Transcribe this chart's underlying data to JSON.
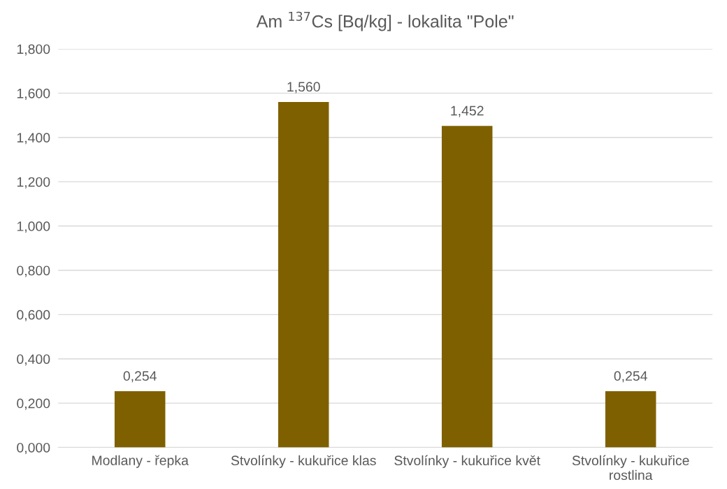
{
  "chart_data": {
    "type": "bar",
    "title": "Am $^{137}$Cs [Bq/kg] - lokalita \"Pole\"",
    "categories": [
      "Modlany - řepka",
      "Stvolínky - kukuřice klas",
      "Stvolínky - kukuřice květ",
      "Stvolínky - kukuřice\nrostlina"
    ],
    "values": [
      0.254,
      1.56,
      1.452,
      0.254
    ],
    "value_labels": [
      "0,254",
      "1,560",
      "1,452",
      "0,254"
    ],
    "color": "#7f6000",
    "ylim": [
      0,
      1.8
    ],
    "yticks": [
      {
        "value": 0,
        "label": "0,000"
      },
      {
        "value": 0.2,
        "label": "0,200"
      },
      {
        "value": 0.4,
        "label": "0,400"
      },
      {
        "value": 0.6,
        "label": "0,600"
      },
      {
        "value": 0.8,
        "label": "0,800"
      },
      {
        "value": 1.0,
        "label": "1,000"
      },
      {
        "value": 1.2,
        "label": "1,200"
      },
      {
        "value": 1.4,
        "label": "1,400"
      },
      {
        "value": 1.6,
        "label": "1,600"
      },
      {
        "value": 1.8,
        "label": "1,800"
      }
    ],
    "grid": "y"
  }
}
